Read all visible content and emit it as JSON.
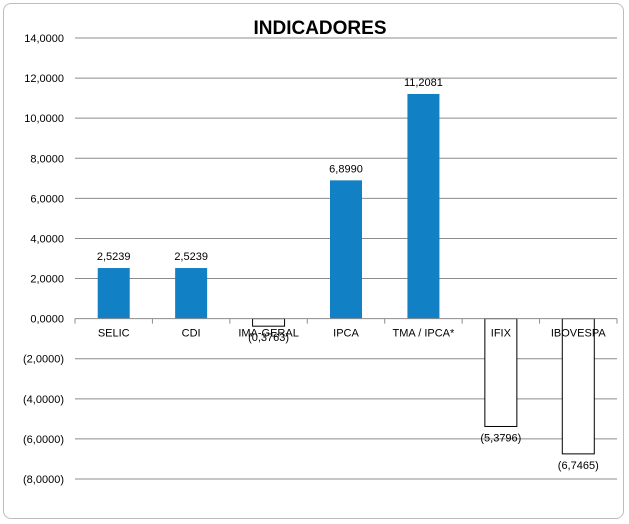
{
  "chart_data": {
    "type": "bar",
    "title": "INDICADORES",
    "categories": [
      "SELIC",
      "CDI",
      "IMA-GERAL",
      "IPCA",
      "TMA / IPCA*",
      "IFIX",
      "IBOVESPA"
    ],
    "values": [
      2.5239,
      2.5239,
      -0.3763,
      6.899,
      11.2081,
      -5.3796,
      -6.7465
    ],
    "data_labels": [
      "2,5239",
      "2,5239",
      "(0,3763)",
      "6,8990",
      "11,2081",
      "(5,3796)",
      "(6,7465)"
    ],
    "ylim": [
      -8,
      14
    ],
    "yticks": [
      14,
      12,
      10,
      8,
      6,
      4,
      2,
      0,
      -2,
      -4,
      -6,
      -8
    ],
    "ytick_labels": [
      "14,0000",
      "12,0000",
      "10,0000",
      "8,0000",
      "6,0000",
      "4,0000",
      "2,0000",
      "0,0000",
      "(2,0000)",
      "(4,0000)",
      "(6,0000)",
      "(8,0000)"
    ],
    "xlabel": "",
    "ylabel": "",
    "grid": true,
    "legend": "none",
    "colors": {
      "positive_fill": "#1280c4",
      "negative_fill": "#ffffff",
      "negative_stroke": "#000000",
      "grid": "#8c8c8c"
    }
  }
}
